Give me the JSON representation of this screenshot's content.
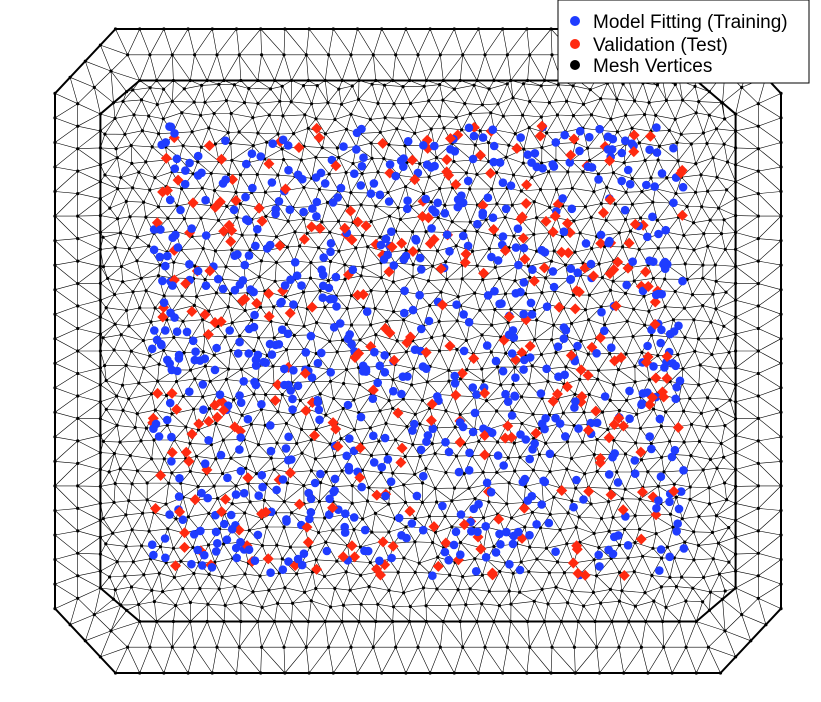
{
  "chart_data": {
    "type": "scatter",
    "title": "",
    "xlabel": "",
    "ylabel": "",
    "axes_visible": false,
    "legend_position": "top-right",
    "series": [
      {
        "name": "Model Fitting (Training)",
        "color": "#1f3cff",
        "marker": "circle",
        "approx_count": 700
      },
      {
        "name": "Validation (Test)",
        "color": "#ff2a10",
        "marker": "diamond",
        "approx_count": 300
      },
      {
        "name": "Mesh Vertices",
        "color": "#000000",
        "marker": "point"
      }
    ],
    "mesh": {
      "description": "triangular mesh over an octagonal domain with refined inner region",
      "outer_boundary_xy": [
        [
          -1.2,
          -1.0
        ],
        [
          -1.0,
          -1.25
        ],
        [
          1.0,
          -1.25
        ],
        [
          1.2,
          -1.0
        ],
        [
          1.2,
          1.0
        ],
        [
          1.0,
          1.25
        ],
        [
          -1.0,
          1.25
        ],
        [
          -1.2,
          1.0
        ]
      ],
      "inner_boundary_xy": [
        [
          -1.05,
          -0.92
        ],
        [
          -0.92,
          -1.05
        ],
        [
          0.92,
          -1.05
        ],
        [
          1.05,
          -0.92
        ],
        [
          1.05,
          0.92
        ],
        [
          0.92,
          1.05
        ],
        [
          -0.92,
          1.05
        ],
        [
          -1.05,
          0.92
        ]
      ],
      "sample_region_xy": [
        [
          -0.9,
          -0.9
        ],
        [
          0.9,
          0.9
        ]
      ]
    }
  }
}
